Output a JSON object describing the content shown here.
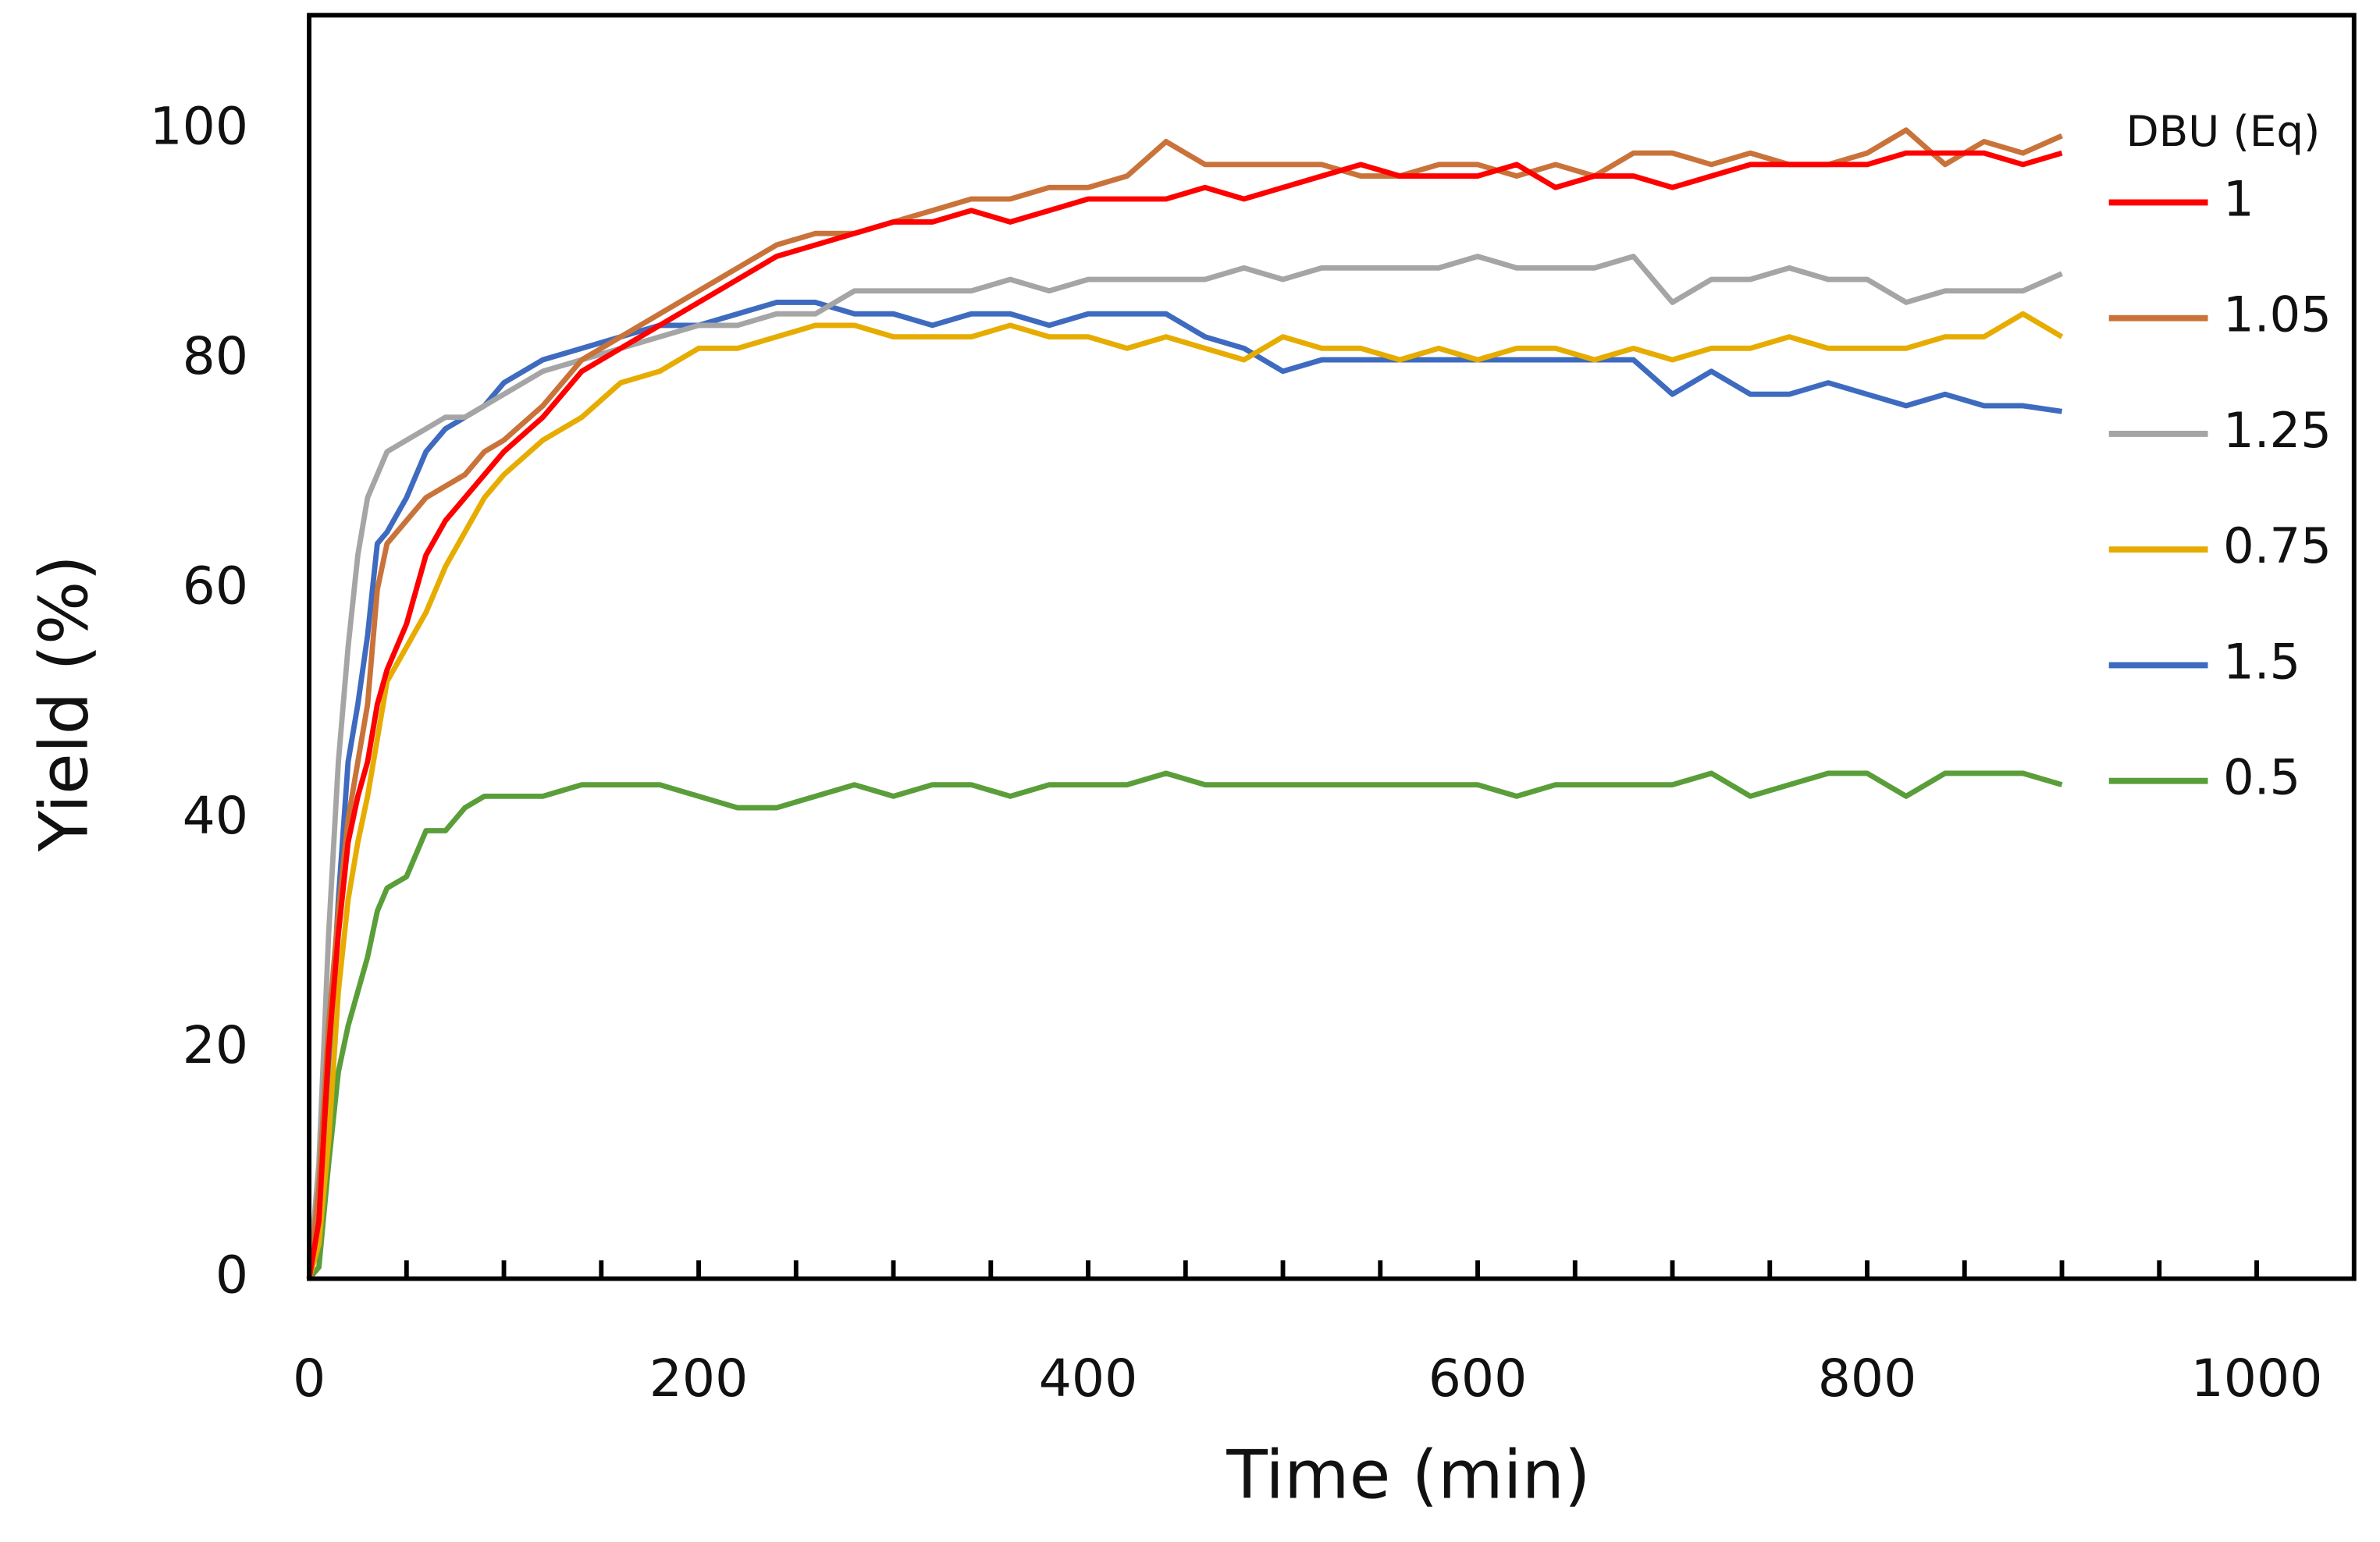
{
  "chart_data": {
    "type": "line",
    "x_label": "Time (min)",
    "y_label": "Yield (%)",
    "legend_title": "DBU (Eq)",
    "legend": "right",
    "x": [
      0,
      5,
      10,
      15,
      20,
      25,
      30,
      35,
      40,
      50,
      60,
      70,
      80,
      90,
      100,
      120,
      140,
      160,
      180,
      200,
      220,
      240,
      260,
      280,
      300,
      320,
      340,
      360,
      380,
      400,
      420,
      440,
      460,
      480,
      500,
      520,
      540,
      560,
      580,
      600,
      620,
      640,
      660,
      680,
      700,
      720,
      740,
      760,
      780,
      800,
      820,
      840,
      860,
      880,
      900
    ],
    "series": [
      {
        "name": "1",
        "color": "#ff0000",
        "values": [
          0,
          5,
          20,
          30,
          38,
          42,
          45,
          50,
          53,
          57,
          63,
          66,
          68,
          70,
          72,
          75,
          79,
          81,
          83,
          85,
          87,
          89,
          90,
          91,
          92,
          92,
          93,
          92,
          93,
          94,
          94,
          94,
          95,
          94,
          95,
          96,
          97,
          96,
          96,
          96,
          97,
          95,
          96,
          96,
          95,
          96,
          97,
          97,
          97,
          97,
          98,
          98,
          98,
          97,
          98
        ]
      },
      {
        "name": "1.05",
        "color": "#c9733a",
        "values": [
          0,
          8,
          22,
          32,
          40,
          45,
          50,
          60,
          64,
          66,
          68,
          69,
          70,
          72,
          73,
          76,
          80,
          82,
          84,
          86,
          88,
          90,
          91,
          91,
          92,
          93,
          94,
          94,
          95,
          95,
          96,
          99,
          97,
          97,
          97,
          97,
          96,
          96,
          97,
          97,
          96,
          97,
          96,
          98,
          98,
          97,
          98,
          97,
          97,
          98,
          100,
          97,
          99,
          98,
          99.5
        ]
      },
      {
        "name": "1.25",
        "color": "#a5a5a5",
        "values": [
          0,
          10,
          30,
          45,
          55,
          63,
          68,
          70,
          72,
          73,
          74,
          75,
          75,
          76,
          77,
          79,
          80,
          81,
          82,
          83,
          83,
          84,
          84,
          86,
          86,
          86,
          86,
          87,
          86,
          87,
          87,
          87,
          87,
          88,
          87,
          88,
          88,
          88,
          88,
          89,
          88,
          88,
          88,
          89,
          85,
          87,
          87,
          88,
          87,
          87,
          85,
          86,
          86,
          86,
          87.5
        ]
      },
      {
        "name": "0.75",
        "color": "#e6ac00",
        "values": [
          0,
          3,
          12,
          25,
          33,
          38,
          42,
          47,
          52,
          55,
          58,
          62,
          65,
          68,
          70,
          73,
          75,
          78,
          79,
          81,
          81,
          82,
          83,
          83,
          82,
          82,
          82,
          83,
          82,
          82,
          81,
          82,
          81,
          80,
          82,
          81,
          81,
          80,
          81,
          80,
          81,
          81,
          80,
          81,
          80,
          81,
          81,
          82,
          81,
          81,
          81,
          82,
          82,
          84,
          82
        ]
      },
      {
        "name": "1.5",
        "color": "#3e6bbf",
        "values": [
          0,
          5,
          18,
          33,
          45,
          50,
          56,
          64,
          65,
          68,
          72,
          74,
          75,
          76,
          78,
          80,
          81,
          82,
          83,
          83,
          84,
          85,
          85,
          84,
          84,
          83,
          84,
          84,
          83,
          84,
          84,
          84,
          82,
          81,
          79,
          80,
          80,
          80,
          80,
          80,
          80,
          80,
          80,
          80,
          77,
          79,
          77,
          77,
          78,
          77,
          76,
          77,
          76,
          76,
          75.5
        ]
      },
      {
        "name": "0.5",
        "color": "#5a9e3a",
        "values": [
          0,
          1,
          10,
          18,
          22,
          25,
          28,
          32,
          34,
          35,
          39,
          39,
          41,
          42,
          42,
          42,
          43,
          43,
          43,
          42,
          41,
          41,
          42,
          43,
          42,
          43,
          43,
          42,
          43,
          43,
          43,
          44,
          43,
          43,
          43,
          43,
          43,
          43,
          43,
          43,
          42,
          43,
          43,
          43,
          43,
          44,
          42,
          43,
          44,
          44,
          42,
          44,
          44,
          44,
          43
        ]
      }
    ],
    "xlim": [
      0,
      1050
    ],
    "xticks": [
      0,
      200,
      400,
      600,
      800,
      1000
    ],
    "xminorticks": [
      50,
      100,
      150,
      250,
      300,
      350,
      450,
      500,
      550,
      650,
      700,
      750,
      850,
      900,
      950
    ],
    "ylim": [
      0,
      110
    ],
    "yticks": [
      0,
      20,
      40,
      60,
      80,
      100
    ]
  }
}
